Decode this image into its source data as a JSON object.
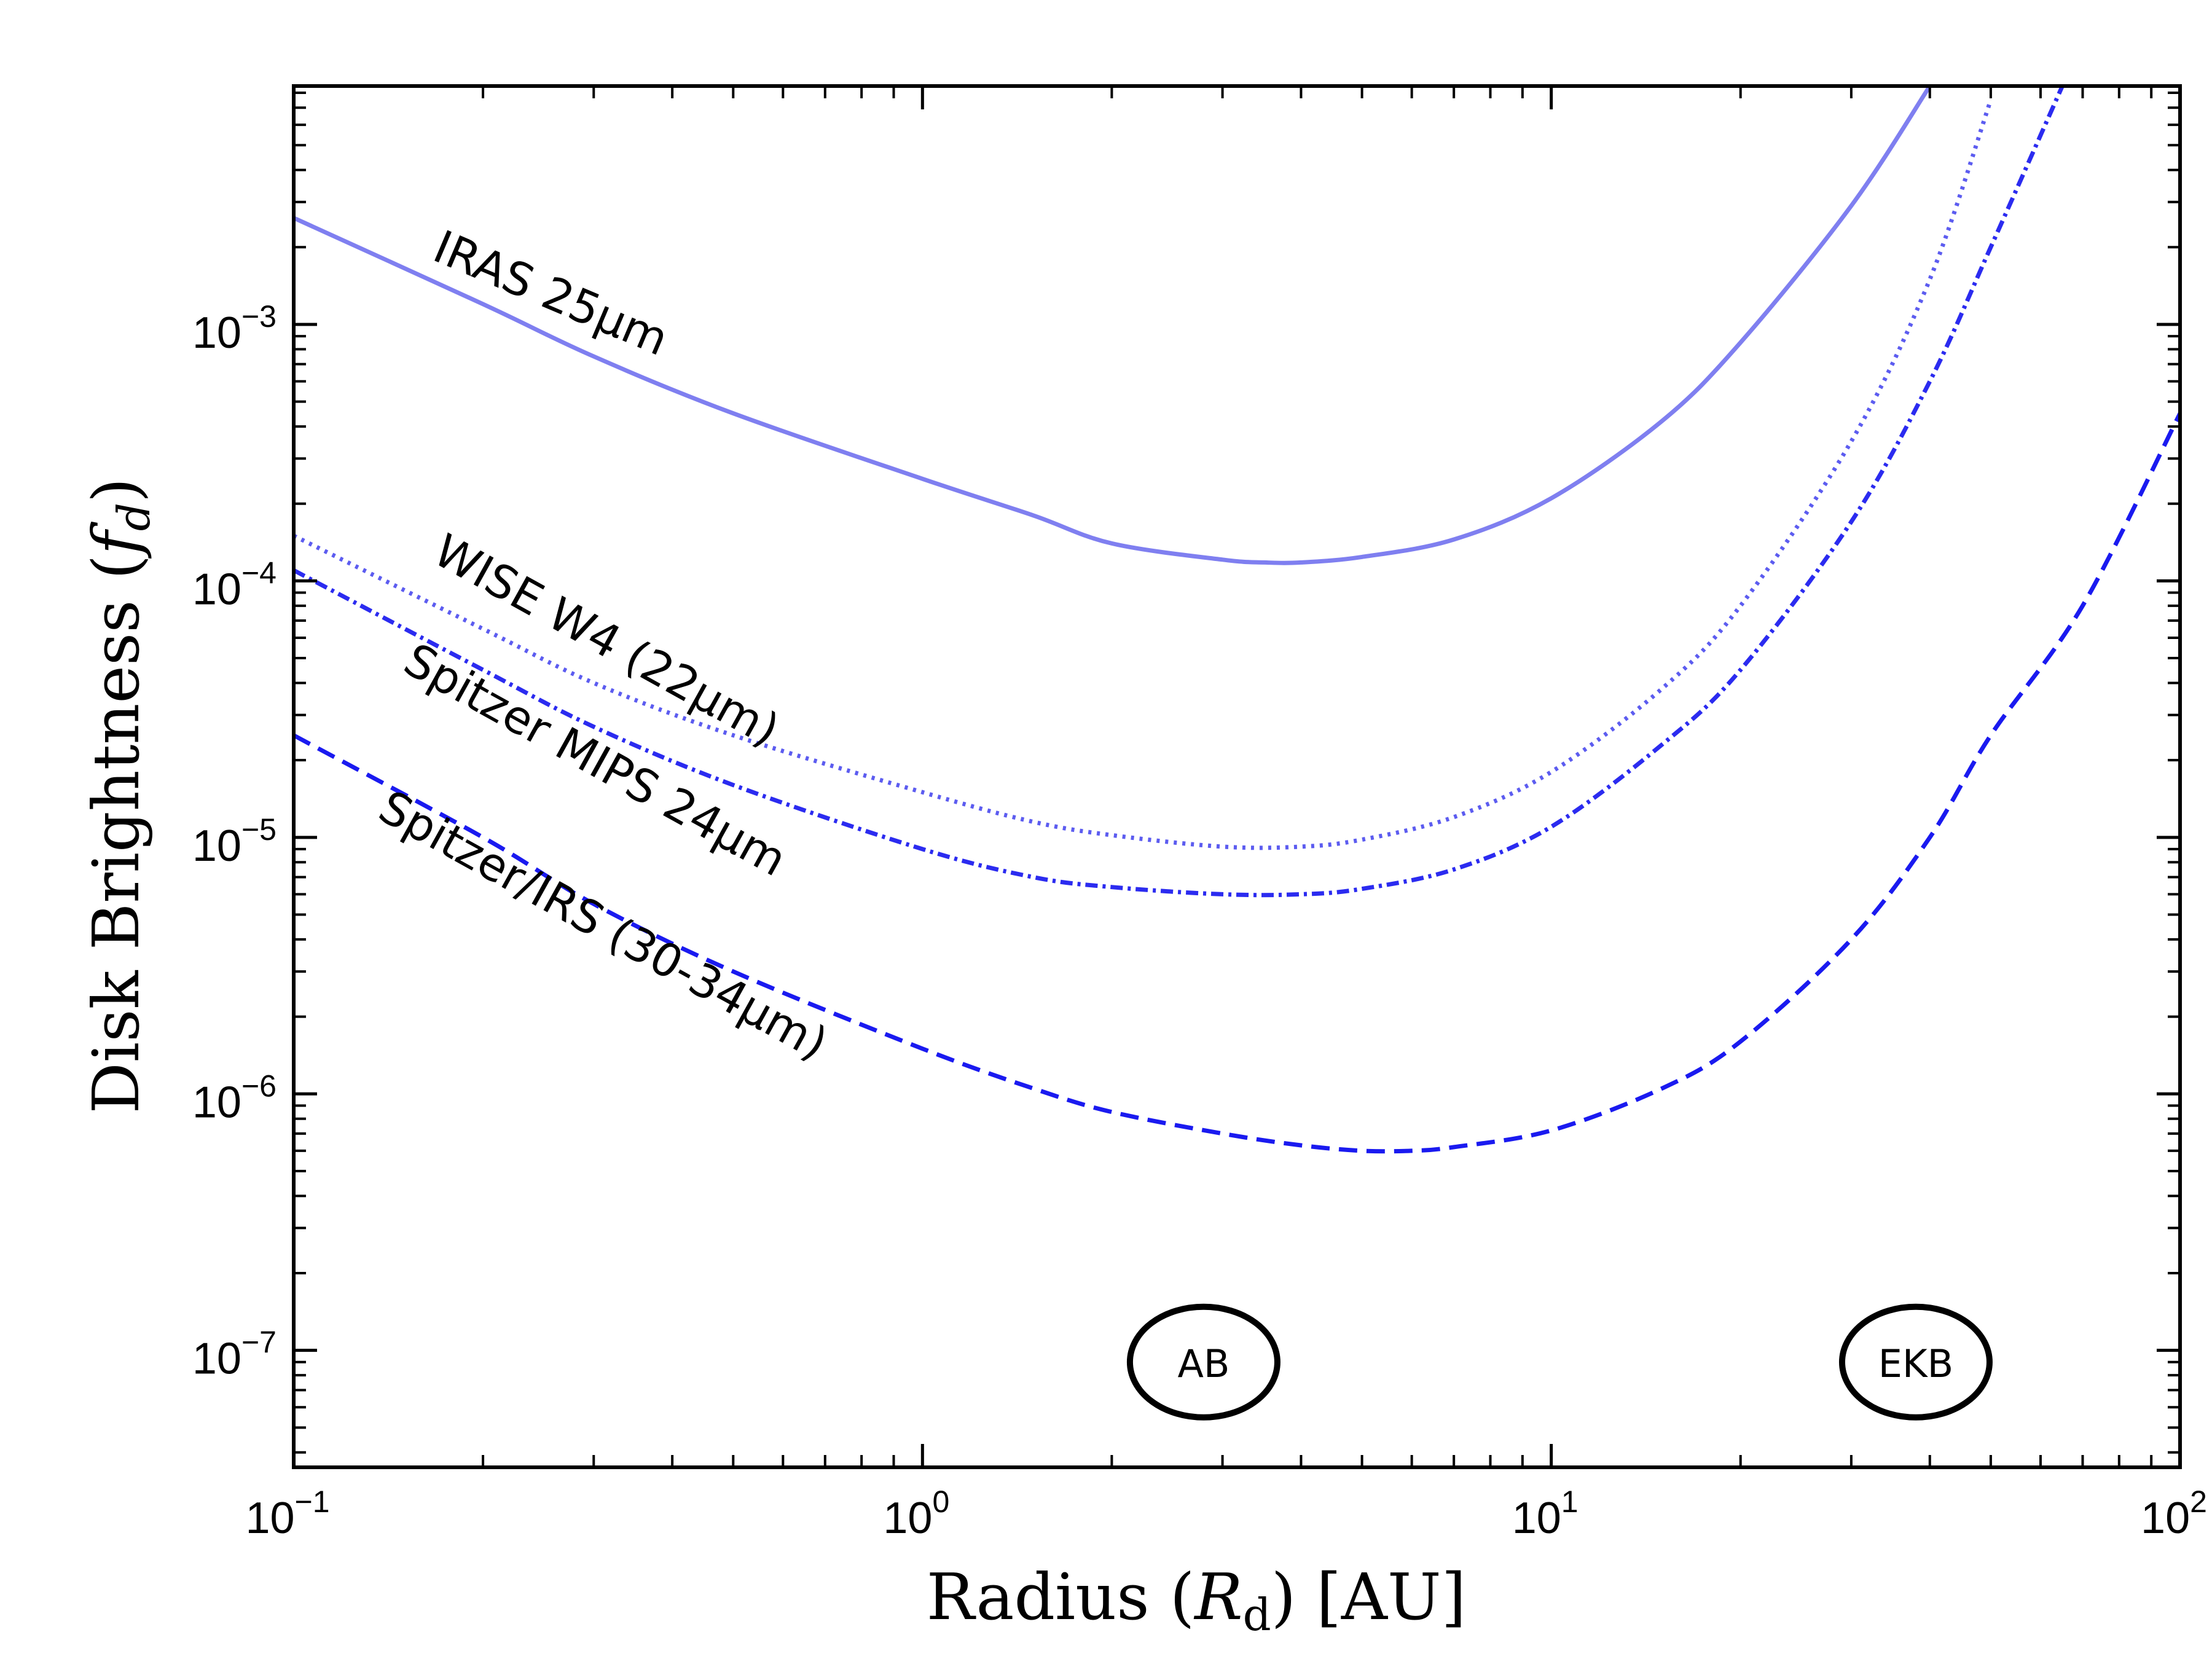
{
  "chart_data": {
    "type": "line",
    "xlabel": {
      "main": "Radius (",
      "italic": "R",
      "sub": "d",
      "rest": ")  [AU]"
    },
    "ylabel": {
      "main": "Disk Brightness (",
      "italic": "f",
      "sub": "d",
      "rest": ")"
    },
    "xscale": "log",
    "yscale": "log",
    "xlim": [
      0.1,
      100
    ],
    "ylim": [
      3.5e-08,
      0.0085
    ],
    "x_ticks": [
      {
        "value": 0.1,
        "base": "10",
        "exp": "−1"
      },
      {
        "value": 1,
        "base": "10",
        "exp": "0"
      },
      {
        "value": 10,
        "base": "10",
        "exp": "1"
      },
      {
        "value": 100,
        "base": "10",
        "exp": "2"
      }
    ],
    "y_ticks": [
      {
        "value": 1e-07,
        "base": "10",
        "exp": "−7"
      },
      {
        "value": 1e-06,
        "base": "10",
        "exp": "−6"
      },
      {
        "value": 1e-05,
        "base": "10",
        "exp": "−5"
      },
      {
        "value": 0.0001,
        "base": "10",
        "exp": "−4"
      },
      {
        "value": 0.001,
        "base": "10",
        "exp": "−3"
      }
    ],
    "series": [
      {
        "name": "IRAS 25µm",
        "style": "solid",
        "color": "#7f7ff0",
        "x": [
          0.1,
          0.2,
          0.3,
          0.5,
          1.0,
          1.5,
          2.0,
          3.0,
          3.5,
          4.0,
          5.0,
          7.0,
          10.0,
          15.0,
          20.0,
          30.0,
          40.0
        ],
        "y": [
          0.0026,
          0.0012,
          0.00075,
          0.00045,
          0.00025,
          0.00018,
          0.00014,
          0.000121,
          0.000118,
          0.000118,
          0.000124,
          0.000145,
          0.00021,
          0.00042,
          0.00085,
          0.0029,
          0.0085
        ]
      },
      {
        "name": "WISE W4 (22µm)",
        "style": "dotted",
        "color": "#5c5cf0",
        "x": [
          0.1,
          0.2,
          0.3,
          0.5,
          1.0,
          1.5,
          2.0,
          3.0,
          4.0,
          5.0,
          7.0,
          10.0,
          15.0,
          20.0,
          30.0,
          40.0,
          50.0
        ],
        "y": [
          0.00015,
          6.5e-05,
          4e-05,
          2.5e-05,
          1.5e-05,
          1.15e-05,
          1.02e-05,
          9.2e-06,
          9.2e-06,
          9.8e-06,
          1.2e-05,
          1.8e-05,
          3.8e-05,
          8e-05,
          0.00035,
          0.0015,
          0.0075
        ]
      },
      {
        "name": "Spitzer MIPS 24µm",
        "style": "dashdot",
        "color": "#2b2bf0",
        "x": [
          0.1,
          0.2,
          0.3,
          0.5,
          1.0,
          1.5,
          2.0,
          3.0,
          4.0,
          5.0,
          7.0,
          10.0,
          15.0,
          20.0,
          30.0,
          40.0,
          50.0,
          65.0
        ],
        "y": [
          0.00011,
          4.5e-05,
          2.7e-05,
          1.6e-05,
          9e-06,
          7e-06,
          6.4e-06,
          6e-06,
          6e-06,
          6.3e-06,
          7.5e-06,
          1.1e-05,
          2.3e-05,
          4.5e-05,
          0.00017,
          0.0006,
          0.002,
          0.0085
        ]
      },
      {
        "name": "Spitzer/IRS (30-34µm)",
        "style": "dashed",
        "color": "#1a1af0",
        "x": [
          0.1,
          0.2,
          0.3,
          0.5,
          1.0,
          1.5,
          2.0,
          3.0,
          4.0,
          5.0,
          6.0,
          7.0,
          10.0,
          15.0,
          20.0,
          30.0,
          40.0,
          50.0,
          70.0,
          100.0
        ],
        "y": [
          2.5e-05,
          1e-05,
          5.5e-06,
          3e-06,
          1.5e-06,
          1.05e-06,
          8.5e-07,
          7e-07,
          6.3e-07,
          6e-07,
          6e-07,
          6.2e-07,
          7.2e-07,
          1.05e-06,
          1.6e-06,
          4e-06,
          1e-05,
          2.5e-05,
          8e-05,
          0.00045
        ]
      }
    ],
    "curve_labels": [
      {
        "text": "IRAS 25µm",
        "series": 0,
        "angle": 23
      },
      {
        "text": "WISE W4 (22µm)",
        "series": 1,
        "angle": 29
      },
      {
        "text": "Spitzer MIPS 24µm",
        "series": 2,
        "angle": 29
      },
      {
        "text": "Spitzer/IRS (30-34µm)",
        "series": 3,
        "angle": 29
      }
    ],
    "zone_markers": [
      {
        "label": "AB",
        "x": 2.8,
        "y": 9e-08
      },
      {
        "label": "EKB",
        "x": 38,
        "y": 9e-08
      }
    ],
    "grid": false,
    "legend": "none"
  }
}
